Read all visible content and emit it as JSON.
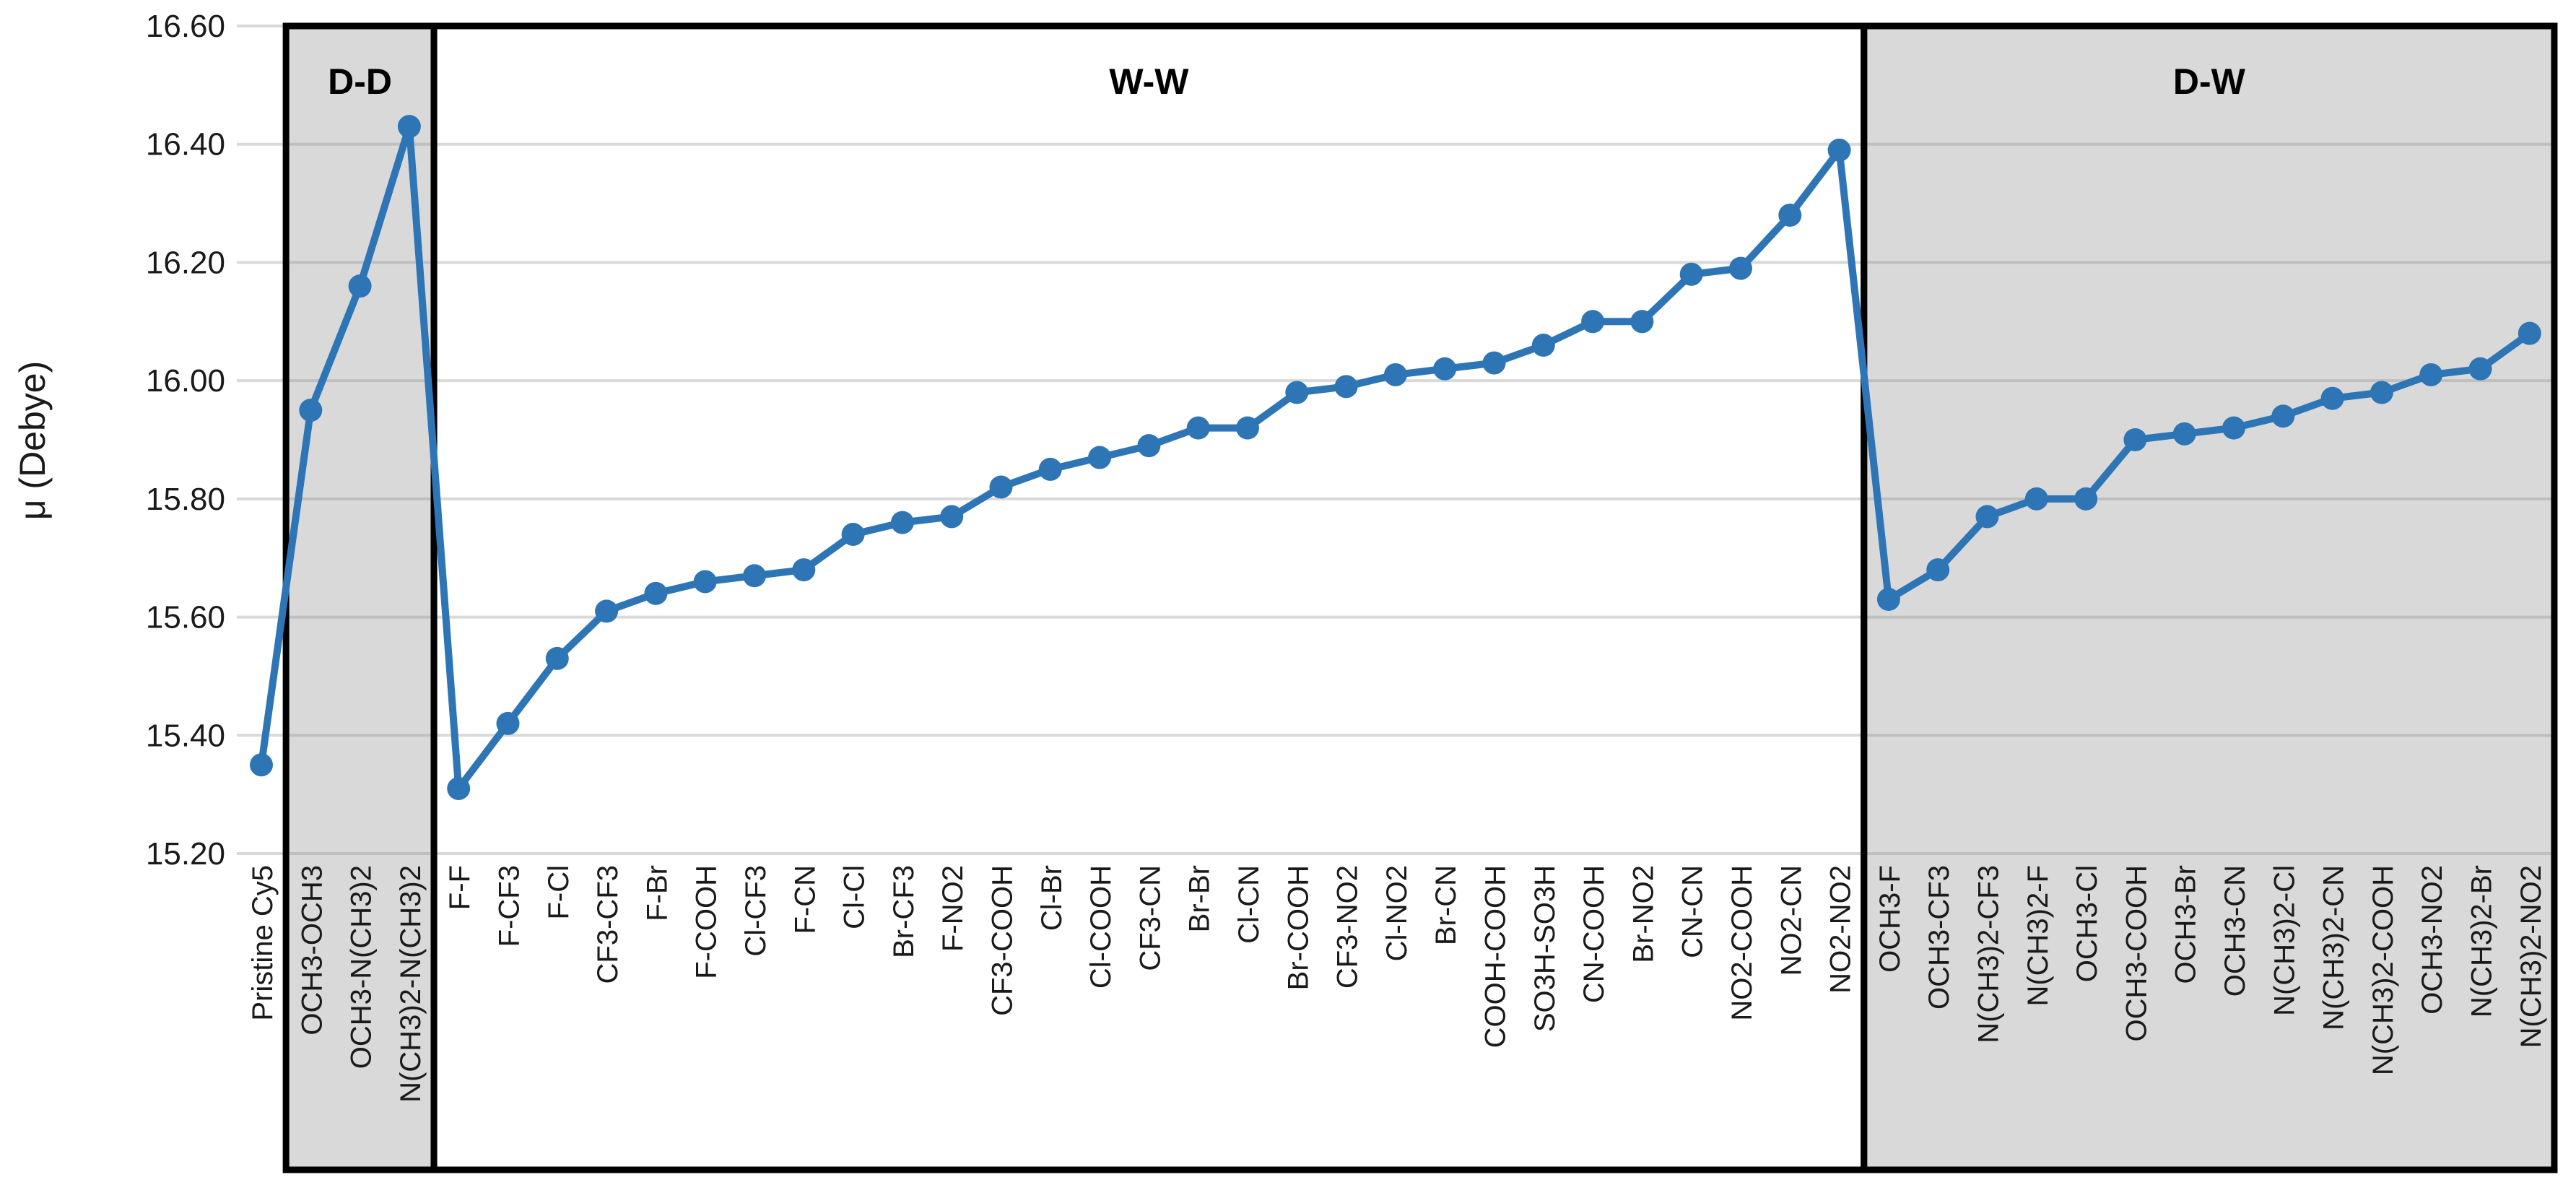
{
  "page": {
    "background": "#FFFFFF"
  },
  "chart_data": {
    "type": "line",
    "title": "",
    "xlabel": "",
    "ylabel": "μ (Debye)",
    "ylim": [
      15.2,
      16.6
    ],
    "ytick_step": 0.2,
    "yticks": [
      16.6,
      16.4,
      16.2,
      16.0,
      15.8,
      15.6,
      15.4,
      15.2
    ],
    "ytick_labels": [
      "16.60",
      "16.40",
      "16.20",
      "16.00",
      "15.80",
      "15.60",
      "15.40",
      "15.20"
    ],
    "grid": true,
    "legend_position": "none",
    "marker": "circle",
    "categories": [
      "Pristine Cy5",
      "OCH3-OCH3",
      "OCH3-N(CH3)2",
      "N(CH3)2-N(CH3)2",
      "F-F",
      "F-CF3",
      "F-Cl",
      "CF3-CF3",
      "F-Br",
      "F-COOH",
      "Cl-CF3",
      "F-CN",
      "Cl-Cl",
      "Br-CF3",
      "F-NO2",
      "CF3-COOH",
      "Cl-Br",
      "Cl-COOH",
      "CF3-CN",
      "Br-Br",
      "Cl-CN",
      "Br-COOH",
      "CF3-NO2",
      "Cl-NO2",
      "Br-CN",
      "COOH-COOH",
      "SO3H-SO3H",
      "CN-COOH",
      "Br-NO2",
      "CN-CN",
      "NO2-COOH",
      "NO2-CN",
      "NO2-NO2",
      "OCH3-F",
      "OCH3-CF3",
      "N(CH3)2-CF3",
      "N(CH3)2-F",
      "OCH3-Cl",
      "OCH3-COOH",
      "OCH3-Br",
      "OCH3-CN",
      "N(CH3)2-Cl",
      "N(CH3)2-CN",
      "N(CH3)2-COOH",
      "OCH3-NO2",
      "N(CH3)2-Br",
      "N(CH3)2-NO2"
    ],
    "values": [
      15.35,
      15.95,
      16.16,
      16.43,
      15.31,
      15.42,
      15.53,
      15.61,
      15.64,
      15.66,
      15.67,
      15.68,
      15.74,
      15.76,
      15.77,
      15.82,
      15.85,
      15.87,
      15.89,
      15.92,
      15.92,
      15.98,
      15.99,
      16.01,
      16.02,
      16.03,
      16.06,
      16.1,
      16.1,
      16.18,
      16.19,
      16.28,
      16.39,
      15.63,
      15.68,
      15.77,
      15.8,
      15.8,
      15.9,
      15.91,
      15.92,
      15.94,
      15.97,
      15.98,
      16.01,
      16.02,
      16.08
    ],
    "regions": [
      {
        "label": "D-D",
        "start_index": 1,
        "end_index": 3,
        "shaded": true
      },
      {
        "label": "W-W",
        "start_index": 4,
        "end_index": 32,
        "shaded": false
      },
      {
        "label": "D-W",
        "start_index": 33,
        "end_index": 46,
        "shaded": true
      }
    ],
    "colors": {
      "line": "#2E75B6",
      "marker": "#2E75B6",
      "shaded_fill": "#D9D9D9",
      "plain_fill": "#FFFFFF",
      "grid_on_white": "#D9D9D9",
      "grid_on_gray": "#BFBFBF",
      "region_border": "#000000",
      "text": "#1A1A1A"
    }
  }
}
